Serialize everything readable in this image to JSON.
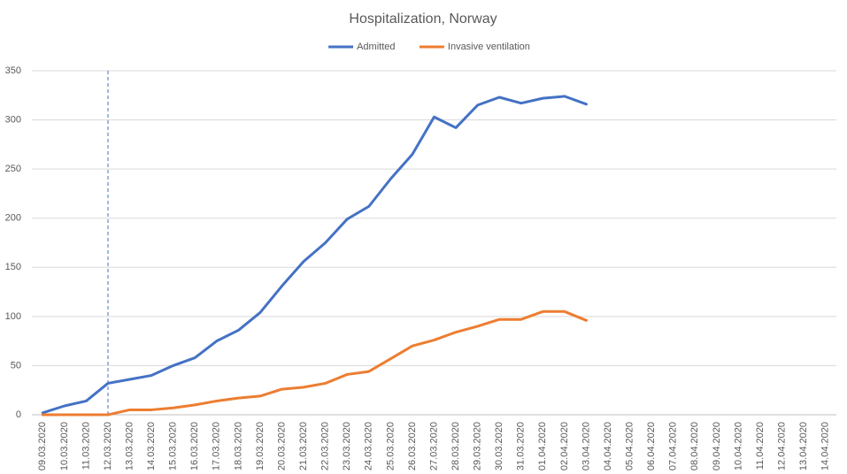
{
  "chart_data": {
    "type": "line",
    "title": "Hospitalization, Norway",
    "categories": [
      "09.03.2020",
      "10.03.2020",
      "11.03.2020",
      "12.03.2020",
      "13.03.2020",
      "14.03.2020",
      "15.03.2020",
      "16.03.2020",
      "17.03.2020",
      "18.03.2020",
      "19.03.2020",
      "20.03.2020",
      "21.03.2020",
      "22.03.2020",
      "23.03.2020",
      "24.03.2020",
      "25.03.2020",
      "26.03.2020",
      "27.03.2020",
      "28.03.2020",
      "29.03.2020",
      "30.03.2020",
      "31.03.2020",
      "01.04.2020",
      "02.04.2020",
      "03.04.2020",
      "04.04.2020",
      "05.04.2020",
      "06.04.2020",
      "07.04.2020",
      "08.04.2020",
      "09.04.2020",
      "10.04.2020",
      "11.04.2020",
      "12.04.2020",
      "13.04.2020",
      "14.04.2020"
    ],
    "series": [
      {
        "name": "Admitted",
        "color": "#4472c4",
        "values": [
          2,
          9,
          14,
          32,
          36,
          40,
          50,
          58,
          75,
          86,
          104,
          131,
          156,
          175,
          199,
          212,
          240,
          265,
          303,
          292,
          315,
          323,
          317,
          322,
          324,
          316,
          null,
          null,
          null,
          null,
          null,
          null,
          null,
          null,
          null,
          null,
          null
        ]
      },
      {
        "name": "Invasive ventilation",
        "color": "#ed7d31",
        "values": [
          0,
          0,
          0,
          0,
          5,
          5,
          7,
          10,
          14,
          17,
          19,
          26,
          28,
          32,
          41,
          44,
          57,
          70,
          76,
          84,
          90,
          97,
          97,
          105,
          105,
          96,
          null,
          null,
          null,
          null,
          null,
          null,
          null,
          null,
          null,
          null,
          null
        ]
      }
    ],
    "vline": "12.03.2020",
    "ylim": [
      0,
      350
    ],
    "yticks": [
      0,
      50,
      100,
      150,
      200,
      250,
      300,
      350
    ],
    "grid": true,
    "legend": "top"
  }
}
